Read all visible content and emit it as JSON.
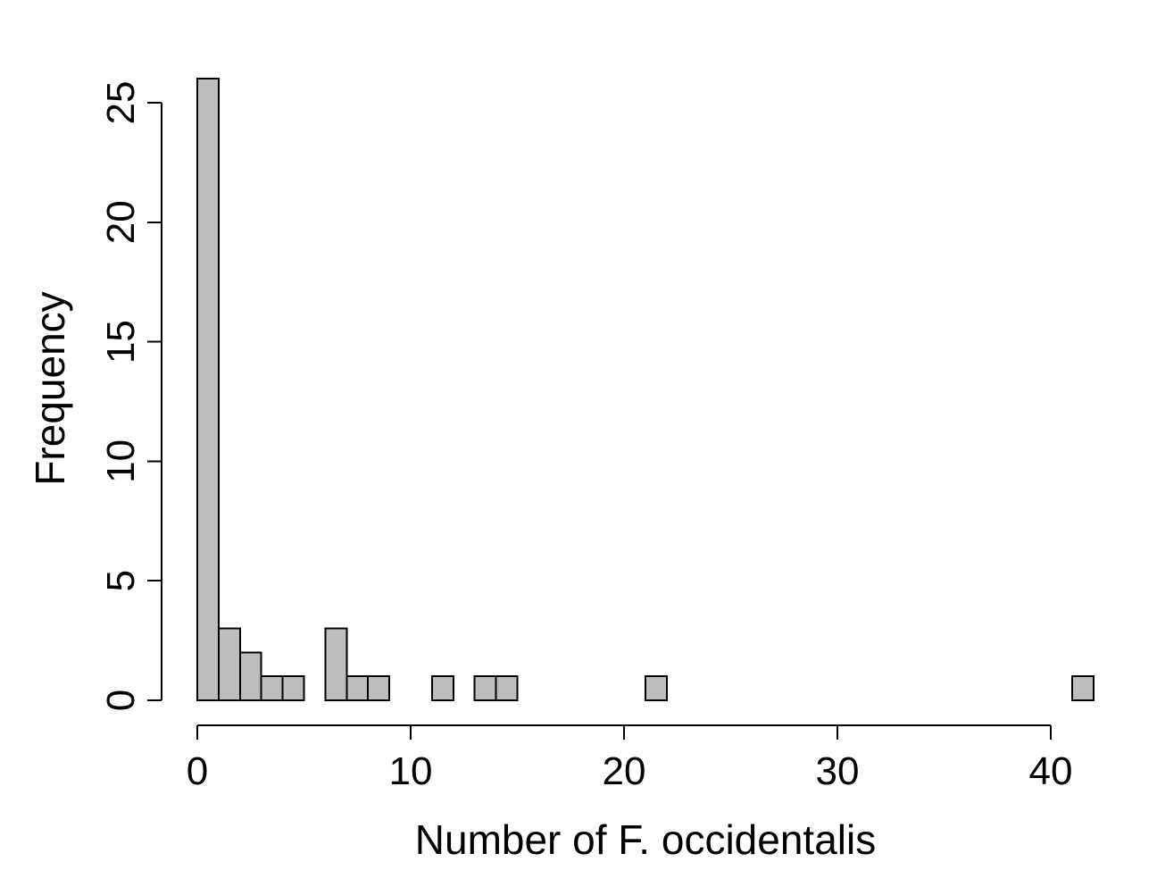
{
  "chart_data": {
    "type": "bar",
    "title": "",
    "xlabel": "Number of F. occidentalis",
    "ylabel": "Frequency",
    "bin_width": 1,
    "bin_start": 0,
    "values": [
      26,
      3,
      2,
      1,
      1,
      0,
      3,
      1,
      1,
      0,
      0,
      1,
      0,
      1,
      1,
      0,
      0,
      0,
      0,
      0,
      0,
      1,
      0,
      0,
      0,
      0,
      0,
      0,
      0,
      0,
      0,
      0,
      0,
      0,
      0,
      0,
      0,
      0,
      0,
      0,
      0,
      1
    ],
    "xlim": [
      0,
      42
    ],
    "ylim": [
      0,
      26
    ],
    "x_ticks": [
      0,
      10,
      20,
      30,
      40
    ],
    "y_ticks": [
      0,
      5,
      10,
      15,
      20,
      25
    ],
    "grid": false,
    "bar_color": "#bebebe"
  }
}
